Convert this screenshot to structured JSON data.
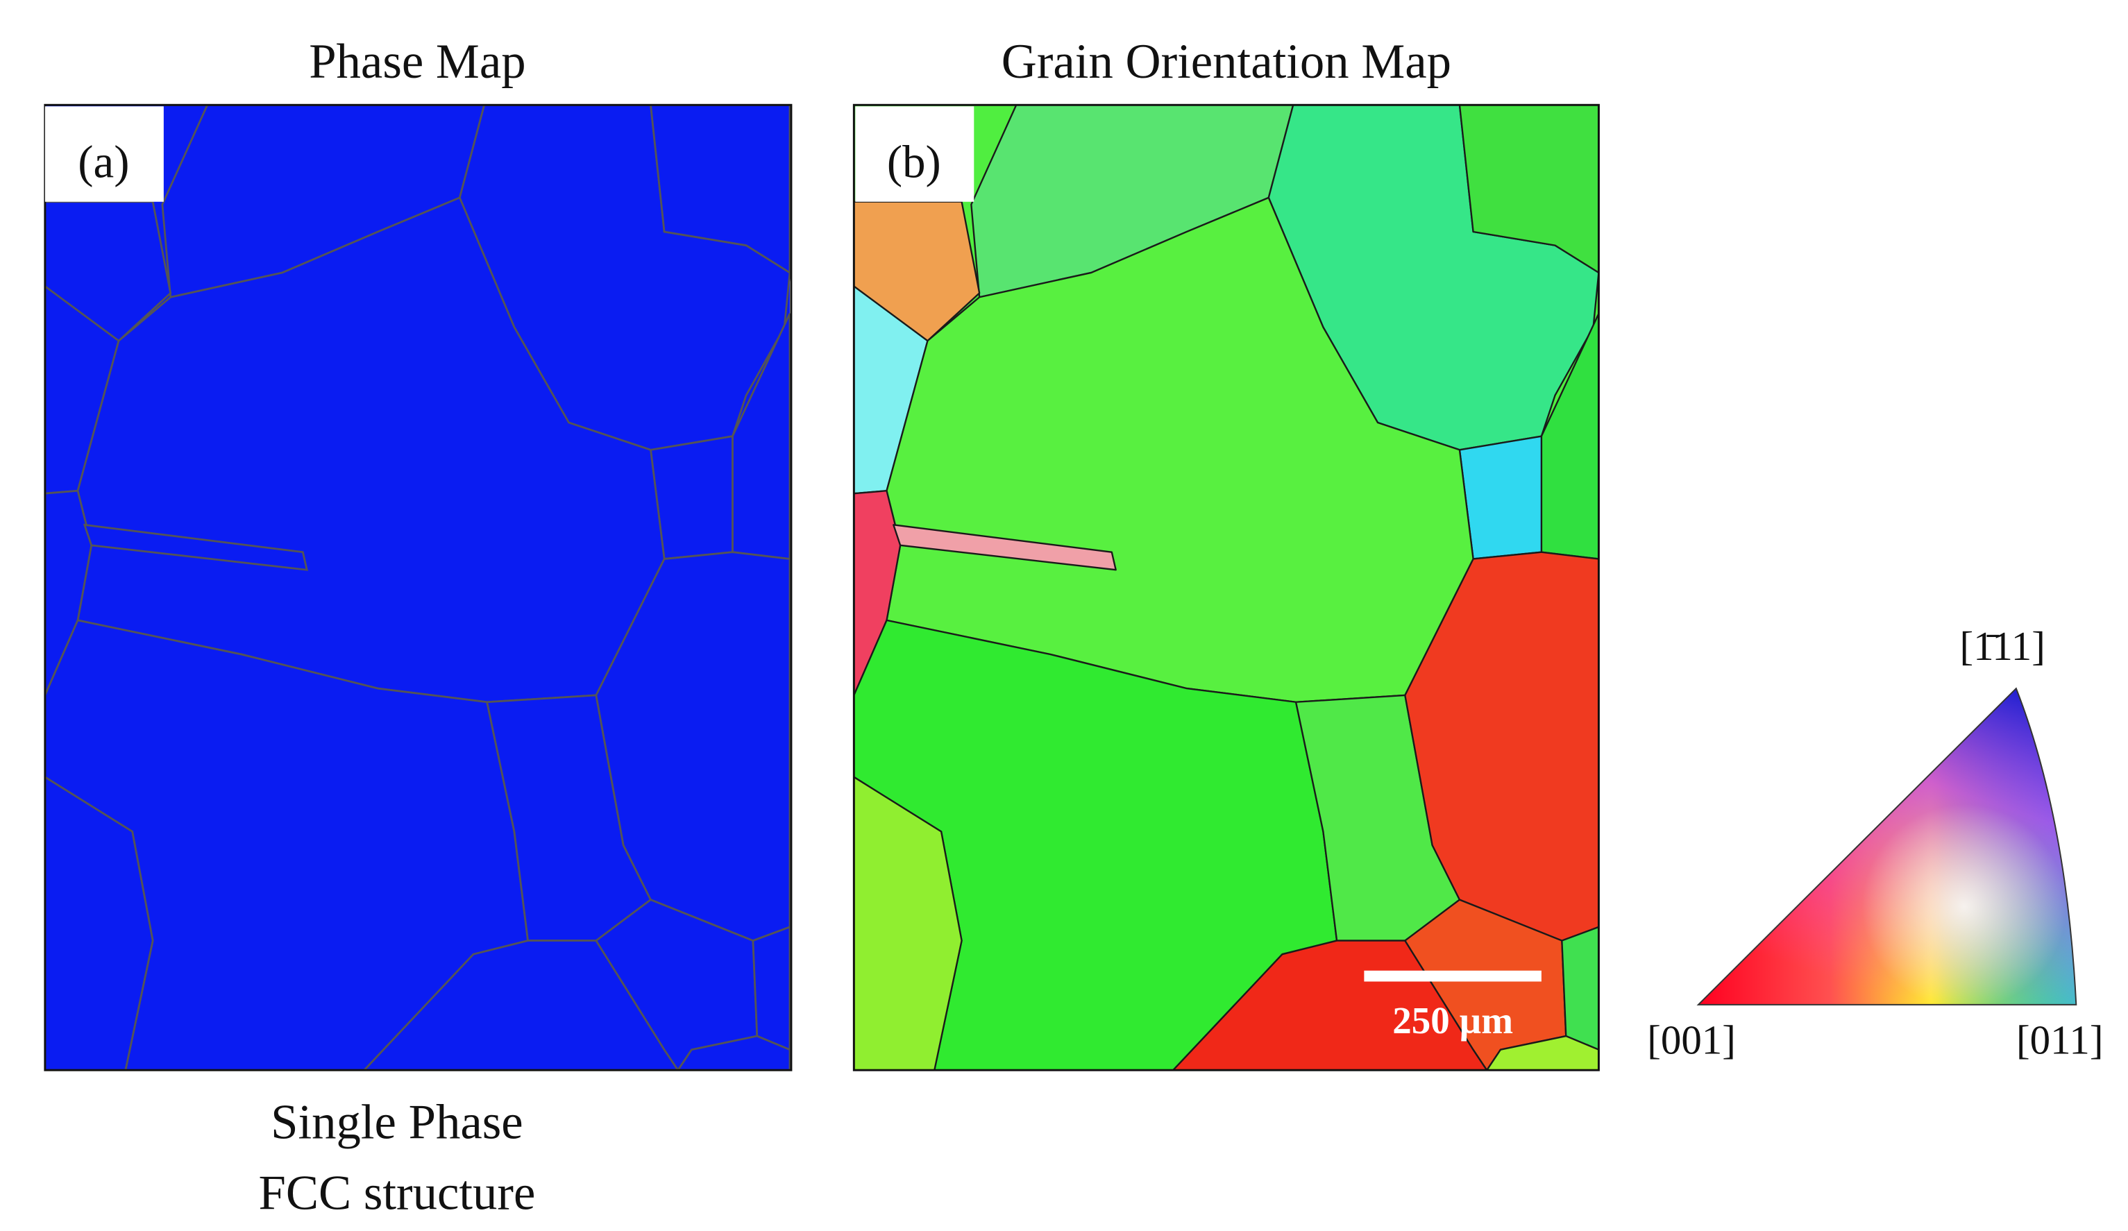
{
  "panels": [
    {
      "title": "Phase Map",
      "label": "(a)",
      "caption": [
        "Single Phase",
        "FCC structure"
      ]
    },
    {
      "title": "Grain Orientation Map",
      "label": "(b)",
      "scale_bar": "250 µm"
    }
  ],
  "legend": {
    "top": "[1̄11]",
    "left": "[001]",
    "right": "[011]"
  }
}
